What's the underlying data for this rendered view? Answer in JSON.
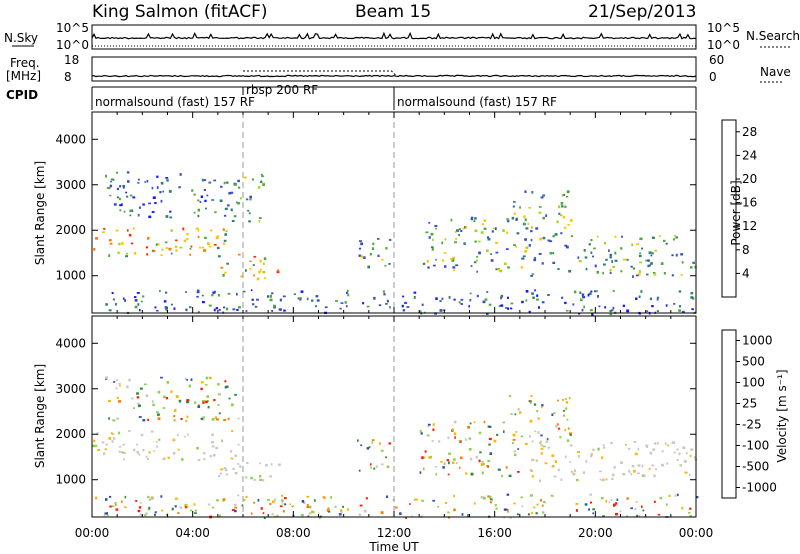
{
  "header": {
    "station": "King Salmon (fitACF)",
    "beam": "Beam 15",
    "date": "21/Sep/2013"
  },
  "strips": {
    "nsky_label": "N.Sky",
    "nsky_ticks": [
      "10^5",
      "10^0"
    ],
    "nsearch_label": "N.Search",
    "nsearch_ticks": [
      "10^5",
      "10^0"
    ],
    "freq_label": "Freq.",
    "freq_unit": "[MHz]",
    "freq_ticks": [
      "18",
      "8"
    ],
    "nave_label": "Nave",
    "nave_ticks": [
      "60",
      "0"
    ],
    "cpid_label": "CPID",
    "cpid_segments": [
      {
        "label": "normalsound (fast) 157 RF",
        "start_hour": 0,
        "end_hour": 6
      },
      {
        "label": "rbsp 200 RF",
        "start_hour": 6,
        "end_hour": 12
      },
      {
        "label": "normalsound (fast) 157 RF",
        "start_hour": 12,
        "end_hour": 24
      }
    ]
  },
  "chart_data": [
    {
      "type": "heatmap",
      "panel": "power",
      "ylabel": "Slant Range [km]",
      "yticks": [
        "1000",
        "2000",
        "3000",
        "4000"
      ],
      "ylim": [
        180,
        4600
      ],
      "xlim": [
        0,
        24
      ],
      "colorbar": {
        "label": "Power [dB]",
        "ticks": [
          "4",
          "8",
          "12",
          "16",
          "20",
          "24",
          "28"
        ],
        "range": [
          0,
          30
        ],
        "colors": [
          "#1414ff",
          "#3a4cc8",
          "#2f7e6e",
          "#4caa3c",
          "#a6d21c",
          "#ffc400",
          "#ff7a00",
          "#ff2a00",
          "#d40000"
        ]
      },
      "echo_regions": [
        {
          "hours": [
            0.0,
            5.8
          ],
          "range_km": [
            1450,
            2100
          ],
          "level": "strong"
        },
        {
          "hours": [
            0.5,
            5.8
          ],
          "range_km": [
            2300,
            3300
          ],
          "level": "weak"
        },
        {
          "hours": [
            5.0,
            7.5
          ],
          "range_km": [
            950,
            1500
          ],
          "level": "strong"
        },
        {
          "hours": [
            5.5,
            6.8
          ],
          "range_km": [
            2200,
            3300
          ],
          "level": "medium"
        },
        {
          "hours": [
            10.5,
            11.8
          ],
          "range_km": [
            1100,
            1900
          ],
          "level": "medium"
        },
        {
          "hours": [
            13.0,
            17.0
          ],
          "range_km": [
            1100,
            2300
          ],
          "level": "medium"
        },
        {
          "hours": [
            16.5,
            19.0
          ],
          "range_km": [
            1900,
            2900
          ],
          "level": "medium"
        },
        {
          "hours": [
            17.0,
            24.0
          ],
          "range_km": [
            1000,
            1900
          ],
          "level": "medium"
        },
        {
          "hours": [
            0.0,
            24.0
          ],
          "range_km": [
            180,
            700
          ],
          "level": "weak"
        }
      ]
    },
    {
      "type": "heatmap",
      "panel": "velocity",
      "ylabel": "Slant Range [km]",
      "yticks": [
        "1000",
        "2000",
        "3000",
        "4000"
      ],
      "ylim": [
        180,
        4600
      ],
      "xlim": [
        0,
        24
      ],
      "colorbar": {
        "label": "Velocity [m s⁻¹]",
        "ticks": [
          "1000",
          "500",
          "100",
          "25",
          "-25",
          "-100",
          "-500",
          "-1000"
        ],
        "colors": [
          "#1d1de0",
          "#2e4ea8",
          "#2f8a3c",
          "#8cd24a",
          "#c8c8c0",
          "#ffb400",
          "#ff7a00",
          "#ff1a00"
        ]
      },
      "echo_regions": [
        {
          "hours": [
            0.0,
            5.8
          ],
          "range_km": [
            1450,
            2100
          ],
          "level": "ground"
        },
        {
          "hours": [
            0.5,
            5.8
          ],
          "range_km": [
            2300,
            3300
          ],
          "level": "mixed"
        },
        {
          "hours": [
            5.0,
            7.5
          ],
          "range_km": [
            950,
            1500
          ],
          "level": "ground"
        },
        {
          "hours": [
            10.5,
            11.8
          ],
          "range_km": [
            1100,
            1900
          ],
          "level": "mixed"
        },
        {
          "hours": [
            13.0,
            17.0
          ],
          "range_km": [
            1100,
            2300
          ],
          "level": "mixed"
        },
        {
          "hours": [
            16.5,
            19.0
          ],
          "range_km": [
            1900,
            2900
          ],
          "level": "mixed"
        },
        {
          "hours": [
            17.0,
            24.0
          ],
          "range_km": [
            1000,
            1900
          ],
          "level": "ground"
        },
        {
          "hours": [
            0.0,
            24.0
          ],
          "range_km": [
            180,
            700
          ],
          "level": "mixed"
        }
      ]
    }
  ],
  "xaxis": {
    "ticks": [
      "00:00",
      "04:00",
      "08:00",
      "12:00",
      "16:00",
      "20:00",
      "00:00"
    ],
    "label": "Time UT"
  }
}
